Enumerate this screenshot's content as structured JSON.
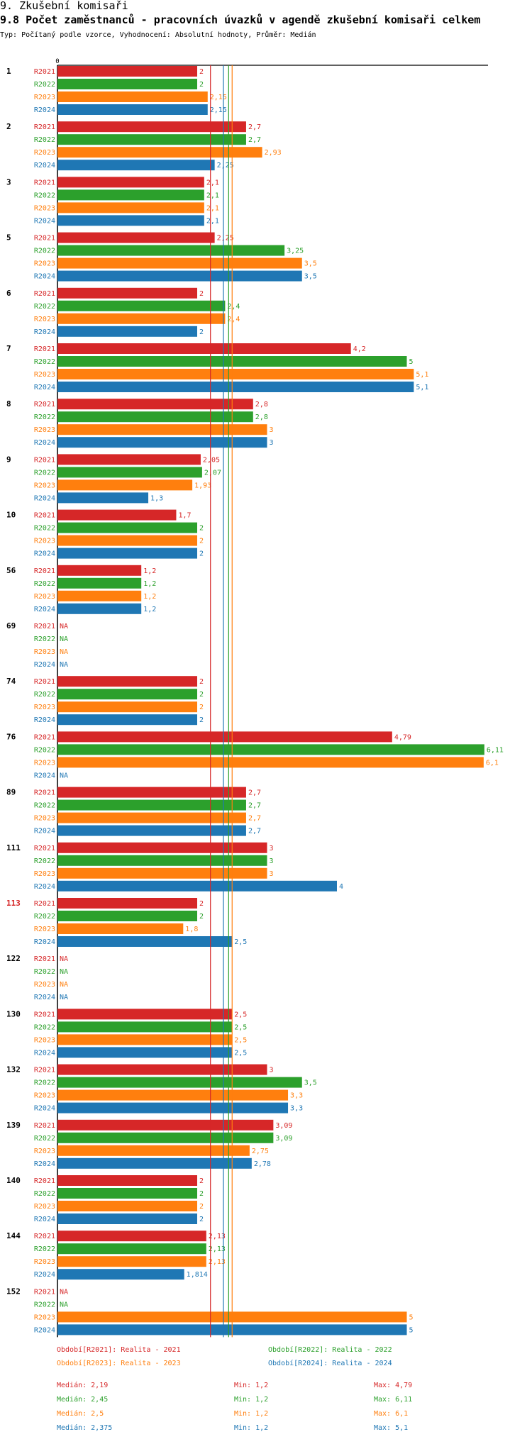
{
  "header": {
    "title": "9. Zkušební komisaři",
    "subtitle": "9.8 Počet zaměstnanců - pracovních úvazků v agendě zkušební komisaři celkem",
    "type_line": "Typ: Počítaný podle vzorce, Vyhodnocení: Absolutní hodnoty, Průměr: Medián"
  },
  "colors": {
    "R2021": "#d62728",
    "R2022": "#2ca02c",
    "R2023": "#ff7f0e",
    "R2024": "#1f77b4",
    "highlight_group": "#d62728",
    "axis": "#000000"
  },
  "chart_data": {
    "type": "bar",
    "orientation": "horizontal",
    "title": "9.8 Počet zaměstnanců - pracovních úvazků v agendě zkušební komisaři celkem",
    "x_axis_zero_label": "0",
    "xlim": [
      0,
      6.11
    ],
    "categories": [
      "1",
      "2",
      "3",
      "5",
      "6",
      "7",
      "8",
      "9",
      "10",
      "56",
      "69",
      "74",
      "76",
      "89",
      "111",
      "113",
      "122",
      "130",
      "132",
      "139",
      "140",
      "144",
      "152"
    ],
    "highlighted_category": "113",
    "series": [
      {
        "name": "R2021",
        "values": [
          2,
          2.7,
          2.1,
          2.25,
          2,
          4.2,
          2.8,
          2.05,
          1.7,
          1.2,
          null,
          2,
          4.79,
          2.7,
          3,
          2,
          null,
          2.5,
          3,
          3.09,
          2,
          2.13,
          null
        ],
        "labels": [
          "2",
          "2,7",
          "2,1",
          "2,25",
          "2",
          "4,2",
          "2,8",
          "2,05",
          "1,7",
          "1,2",
          "NA",
          "2",
          "4,79",
          "2,7",
          "3",
          "2",
          "NA",
          "2,5",
          "3",
          "3,09",
          "2",
          "2,13",
          "NA"
        ]
      },
      {
        "name": "R2022",
        "values": [
          2,
          2.7,
          2.1,
          3.25,
          2.4,
          5,
          2.8,
          2.07,
          2,
          1.2,
          null,
          2,
          6.11,
          2.7,
          3,
          2,
          null,
          2.5,
          3.5,
          3.09,
          2,
          2.13,
          null
        ],
        "labels": [
          "2",
          "2,7",
          "2,1",
          "3,25",
          "2,4",
          "5",
          "2,8",
          "2,07",
          "2",
          "1,2",
          "NA",
          "2",
          "6,11",
          "2,7",
          "3",
          "2",
          "NA",
          "2,5",
          "3,5",
          "3,09",
          "2",
          "2,13",
          "NA"
        ]
      },
      {
        "name": "R2023",
        "values": [
          2.15,
          2.93,
          2.1,
          3.5,
          2.4,
          5.1,
          3,
          1.93,
          2,
          1.2,
          null,
          2,
          6.1,
          2.7,
          3,
          1.8,
          null,
          2.5,
          3.3,
          2.75,
          2,
          2.13,
          5
        ],
        "labels": [
          "2,15",
          "2,93",
          "2,1",
          "3,5",
          "2,4",
          "5,1",
          "3",
          "1,93",
          "2",
          "1,2",
          "NA",
          "2",
          "6,1",
          "2,7",
          "3",
          "1,8",
          "NA",
          "2,5",
          "3,3",
          "2,75",
          "2",
          "2,13",
          "5"
        ]
      },
      {
        "name": "R2024",
        "values": [
          2.15,
          2.25,
          2.1,
          3.5,
          2,
          5.1,
          3,
          1.3,
          2,
          1.2,
          null,
          2,
          null,
          2.7,
          4,
          2.5,
          null,
          2.5,
          3.3,
          2.78,
          2,
          1.814,
          5
        ],
        "labels": [
          "2,15",
          "2,25",
          "2,1",
          "3,5",
          "2",
          "5,1",
          "3",
          "1,3",
          "2",
          "1,2",
          "NA",
          "2",
          "NA",
          "2,7",
          "4",
          "2,5",
          "NA",
          "2,5",
          "3,3",
          "2,78",
          "2",
          "1,814",
          "5"
        ]
      }
    ],
    "median_lines": [
      {
        "series": "R2021",
        "value": 2.19
      },
      {
        "series": "R2022",
        "value": 2.45
      },
      {
        "series": "R2023",
        "value": 2.5
      },
      {
        "series": "R2024",
        "value": 2.375
      }
    ],
    "legend": [
      {
        "series": "R2021",
        "label": "Období[R2021]: Realita - 2021"
      },
      {
        "series": "R2022",
        "label": "Období[R2022]: Realita - 2022"
      },
      {
        "series": "R2023",
        "label": "Období[R2023]: Realita - 2023"
      },
      {
        "series": "R2024",
        "label": "Období[R2024]: Realita - 2024"
      }
    ],
    "stats": [
      {
        "series": "R2021",
        "median": "Medián: 2,19",
        "min": "Min: 1,2",
        "max": "Max: 4,79"
      },
      {
        "series": "R2022",
        "median": "Medián: 2,45",
        "min": "Min: 1,2",
        "max": "Max: 6,11"
      },
      {
        "series": "R2023",
        "median": "Medián: 2,5",
        "min": "Min: 1,2",
        "max": "Max: 6,1"
      },
      {
        "series": "R2024",
        "median": "Medián: 2,375",
        "min": "Min: 1,2",
        "max": "Max: 5,1"
      }
    ]
  }
}
